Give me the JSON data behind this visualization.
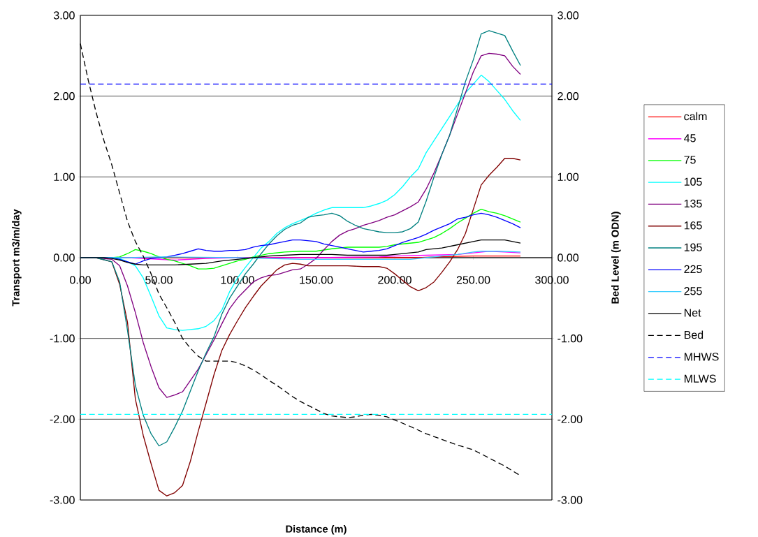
{
  "chart_data": {
    "type": "line",
    "xlabel": "Distance (m)",
    "ylabel": "Transport m3/m/day",
    "y2label": "Bed Level (m ODN)",
    "xlim": [
      0,
      300
    ],
    "ylim": [
      -3,
      3
    ],
    "y2lim": [
      -3,
      3
    ],
    "xticks": [
      {
        "value": 0,
        "label": "0.00"
      },
      {
        "value": 50,
        "label": "50.00"
      },
      {
        "value": 100,
        "label": "100.00"
      },
      {
        "value": 150,
        "label": "150.00"
      },
      {
        "value": 200,
        "label": "200.00"
      },
      {
        "value": 250,
        "label": "250.00"
      },
      {
        "value": 300,
        "label": "300.00"
      }
    ],
    "yticks": [
      {
        "value": -3,
        "label": "-3.00"
      },
      {
        "value": -2,
        "label": "-2.00"
      },
      {
        "value": -1,
        "label": "-1.00"
      },
      {
        "value": 0,
        "label": "0.00"
      },
      {
        "value": 1,
        "label": "1.00"
      },
      {
        "value": 2,
        "label": "2.00"
      },
      {
        "value": 3,
        "label": "3.00"
      }
    ],
    "y2ticks": [
      {
        "value": -3,
        "label": "-3.00"
      },
      {
        "value": -2,
        "label": "-2.00"
      },
      {
        "value": -1,
        "label": "-1.00"
      },
      {
        "value": 0,
        "label": "0.00"
      },
      {
        "value": 1,
        "label": "1.00"
      },
      {
        "value": 2,
        "label": "2.00"
      },
      {
        "value": 3,
        "label": "3.00"
      }
    ],
    "grid": "y",
    "legend": "right",
    "series": [
      {
        "name": "calm",
        "color": "#ff0000",
        "x": [
          0,
          200,
          215,
          225,
          250,
          280
        ],
        "values": [
          0,
          0,
          0,
          0.01,
          0.02,
          0.02
        ]
      },
      {
        "name": "45",
        "color": "#ff00ff",
        "x": [
          0,
          30,
          40,
          50,
          60,
          70,
          80,
          100,
          150,
          190,
          200,
          220,
          240,
          250,
          260,
          270,
          280
        ],
        "values": [
          0,
          0,
          -0.01,
          -0.02,
          -0.03,
          -0.02,
          -0.01,
          0,
          0,
          0.01,
          0.02,
          0.03,
          0.04,
          0.06,
          0.08,
          0.07,
          0.06
        ]
      },
      {
        "name": "75",
        "color": "#00ff00",
        "x": [
          0,
          20,
          25,
          30,
          35,
          40,
          45,
          50,
          55,
          60,
          65,
          70,
          75,
          80,
          85,
          90,
          95,
          100,
          105,
          110,
          115,
          120,
          130,
          140,
          150,
          160,
          170,
          180,
          190,
          195,
          200,
          205,
          210,
          215,
          220,
          225,
          230,
          235,
          240,
          245,
          250,
          255,
          260,
          265,
          270,
          275,
          280
        ],
        "values": [
          0,
          0,
          0.01,
          0.05,
          0.1,
          0.08,
          0.05,
          0.01,
          -0.02,
          -0.04,
          -0.07,
          -0.1,
          -0.14,
          -0.14,
          -0.13,
          -0.1,
          -0.07,
          -0.04,
          -0.02,
          0.01,
          0.03,
          0.05,
          0.07,
          0.08,
          0.08,
          0.11,
          0.13,
          0.13,
          0.13,
          0.14,
          0.16,
          0.17,
          0.18,
          0.19,
          0.22,
          0.25,
          0.3,
          0.36,
          0.43,
          0.49,
          0.55,
          0.6,
          0.57,
          0.55,
          0.52,
          0.48,
          0.44
        ]
      },
      {
        "name": "105",
        "color": "#00ffff",
        "x": [
          0,
          10,
          20,
          25,
          30,
          35,
          40,
          45,
          50,
          55,
          60,
          65,
          70,
          75,
          80,
          85,
          90,
          95,
          100,
          105,
          110,
          115,
          120,
          125,
          130,
          135,
          140,
          145,
          150,
          155,
          160,
          170,
          180,
          185,
          190,
          195,
          200,
          205,
          210,
          215,
          220,
          225,
          230,
          235,
          240,
          245,
          250,
          255,
          260,
          265,
          270,
          275,
          280
        ],
        "values": [
          0,
          0,
          0,
          -0.01,
          -0.05,
          -0.1,
          -0.25,
          -0.48,
          -0.72,
          -0.87,
          -0.89,
          -0.9,
          -0.89,
          -0.88,
          -0.85,
          -0.78,
          -0.65,
          -0.42,
          -0.25,
          -0.12,
          0,
          0.12,
          0.2,
          0.3,
          0.37,
          0.42,
          0.46,
          0.5,
          0.55,
          0.59,
          0.62,
          0.62,
          0.62,
          0.64,
          0.67,
          0.71,
          0.78,
          0.88,
          1.0,
          1.1,
          1.3,
          1.45,
          1.6,
          1.75,
          1.9,
          2.04,
          2.15,
          2.26,
          2.18,
          2.07,
          1.96,
          1.82,
          1.7
        ]
      },
      {
        "name": "135",
        "color": "#800080",
        "x": [
          0,
          10,
          20,
          25,
          30,
          35,
          40,
          45,
          50,
          55,
          60,
          65,
          70,
          75,
          80,
          85,
          90,
          95,
          100,
          105,
          110,
          115,
          120,
          125,
          130,
          135,
          140,
          145,
          150,
          155,
          160,
          165,
          170,
          175,
          180,
          185,
          190,
          195,
          200,
          205,
          210,
          215,
          220,
          225,
          230,
          235,
          240,
          245,
          250,
          255,
          260,
          265,
          270,
          275,
          280
        ],
        "values": [
          0,
          0,
          -0.02,
          -0.1,
          -0.35,
          -0.68,
          -1.05,
          -1.35,
          -1.61,
          -1.73,
          -1.7,
          -1.66,
          -1.52,
          -1.38,
          -1.2,
          -1.02,
          -0.82,
          -0.63,
          -0.5,
          -0.4,
          -0.3,
          -0.25,
          -0.22,
          -0.21,
          -0.18,
          -0.15,
          -0.14,
          -0.08,
          -0.01,
          0.1,
          0.2,
          0.28,
          0.33,
          0.36,
          0.4,
          0.43,
          0.46,
          0.5,
          0.53,
          0.58,
          0.63,
          0.69,
          0.85,
          1.05,
          1.28,
          1.52,
          1.78,
          2.04,
          2.3,
          2.5,
          2.53,
          2.52,
          2.5,
          2.37,
          2.27
        ]
      },
      {
        "name": "165",
        "color": "#800000",
        "x": [
          0,
          10,
          20,
          25,
          30,
          35,
          40,
          45,
          50,
          55,
          60,
          65,
          70,
          75,
          80,
          85,
          90,
          95,
          100,
          105,
          110,
          115,
          120,
          125,
          130,
          135,
          140,
          145,
          150,
          160,
          170,
          180,
          190,
          195,
          200,
          205,
          210,
          215,
          220,
          225,
          230,
          235,
          240,
          245,
          250,
          255,
          260,
          265,
          270,
          275,
          280
        ],
        "values": [
          0,
          0,
          -0.05,
          -0.33,
          -0.8,
          -1.75,
          -2.2,
          -2.55,
          -2.88,
          -2.95,
          -2.91,
          -2.82,
          -2.52,
          -2.15,
          -1.8,
          -1.45,
          -1.15,
          -0.95,
          -0.78,
          -0.62,
          -0.48,
          -0.35,
          -0.25,
          -0.15,
          -0.09,
          -0.07,
          -0.08,
          -0.1,
          -0.1,
          -0.1,
          -0.1,
          -0.11,
          -0.11,
          -0.13,
          -0.2,
          -0.28,
          -0.36,
          -0.41,
          -0.37,
          -0.3,
          -0.18,
          -0.05,
          0.1,
          0.3,
          0.6,
          0.9,
          1.02,
          1.12,
          1.23,
          1.23,
          1.21
        ]
      },
      {
        "name": "195",
        "color": "#008080",
        "x": [
          0,
          10,
          20,
          25,
          30,
          35,
          40,
          45,
          50,
          55,
          60,
          65,
          70,
          75,
          80,
          85,
          90,
          95,
          100,
          105,
          110,
          115,
          120,
          125,
          130,
          135,
          140,
          145,
          150,
          155,
          160,
          165,
          170,
          175,
          180,
          185,
          190,
          195,
          200,
          205,
          210,
          215,
          220,
          225,
          230,
          235,
          240,
          245,
          250,
          255,
          260,
          265,
          270,
          275,
          280
        ],
        "values": [
          0,
          0,
          -0.05,
          -0.3,
          -0.9,
          -1.58,
          -1.95,
          -2.18,
          -2.33,
          -2.28,
          -2.1,
          -1.9,
          -1.65,
          -1.4,
          -1.18,
          -0.98,
          -0.7,
          -0.5,
          -0.35,
          -0.2,
          -0.08,
          0.05,
          0.17,
          0.27,
          0.35,
          0.4,
          0.43,
          0.5,
          0.52,
          0.53,
          0.55,
          0.52,
          0.45,
          0.4,
          0.36,
          0.34,
          0.32,
          0.31,
          0.31,
          0.32,
          0.36,
          0.44,
          0.7,
          1.0,
          1.28,
          1.52,
          1.85,
          2.18,
          2.45,
          2.77,
          2.81,
          2.78,
          2.75,
          2.56,
          2.38
        ]
      },
      {
        "name": "225",
        "color": "#0000ff",
        "x": [
          0,
          20,
          25,
          30,
          35,
          40,
          45,
          50,
          55,
          60,
          65,
          70,
          75,
          80,
          85,
          90,
          95,
          100,
          105,
          110,
          115,
          120,
          125,
          130,
          135,
          140,
          145,
          150,
          155,
          160,
          165,
          170,
          175,
          180,
          185,
          190,
          195,
          200,
          205,
          210,
          215,
          220,
          225,
          230,
          235,
          240,
          245,
          250,
          255,
          260,
          265,
          270,
          275,
          280
        ],
        "values": [
          0,
          0,
          -0.02,
          -0.05,
          -0.08,
          -0.04,
          -0.01,
          0,
          0.01,
          0.03,
          0.05,
          0.08,
          0.11,
          0.09,
          0.08,
          0.08,
          0.09,
          0.09,
          0.1,
          0.13,
          0.15,
          0.16,
          0.18,
          0.2,
          0.22,
          0.22,
          0.21,
          0.2,
          0.17,
          0.15,
          0.13,
          0.11,
          0.09,
          0.07,
          0.08,
          0.09,
          0.11,
          0.15,
          0.19,
          0.22,
          0.25,
          0.29,
          0.34,
          0.38,
          0.42,
          0.48,
          0.5,
          0.53,
          0.55,
          0.53,
          0.5,
          0.46,
          0.42,
          0.37
        ]
      },
      {
        "name": "255",
        "color": "#33ccff",
        "x": [
          0,
          30,
          50,
          100,
          120,
          140,
          160,
          180,
          200,
          210,
          220,
          230,
          240,
          250,
          255,
          265,
          280
        ],
        "values": [
          0,
          0,
          0.01,
          0,
          -0.01,
          -0.02,
          -0.02,
          -0.02,
          -0.02,
          -0.02,
          0,
          0.02,
          0.04,
          0.07,
          0.08,
          0.08,
          0.07
        ]
      },
      {
        "name": "Net",
        "color": "#000000",
        "x": [
          0,
          15,
          20,
          25,
          30,
          35,
          40,
          50,
          60,
          70,
          80,
          90,
          100,
          110,
          120,
          130,
          140,
          150,
          160,
          170,
          180,
          190,
          195,
          200,
          205,
          210,
          215,
          220,
          230,
          240,
          250,
          255,
          260,
          265,
          270,
          275,
          280
        ],
        "values": [
          0,
          0,
          -0.01,
          -0.03,
          -0.06,
          -0.08,
          -0.09,
          -0.09,
          -0.09,
          -0.08,
          -0.07,
          -0.04,
          -0.02,
          0,
          0.02,
          0.03,
          0.04,
          0.04,
          0.04,
          0.03,
          0.03,
          0.03,
          0.03,
          0.04,
          0.05,
          0.06,
          0.07,
          0.1,
          0.12,
          0.16,
          0.2,
          0.22,
          0.22,
          0.22,
          0.22,
          0.2,
          0.18
        ]
      },
      {
        "name": "Bed",
        "color": "#000000",
        "axis": "y2",
        "line_style": "dashed",
        "x": [
          0,
          5,
          10,
          15,
          20,
          25,
          30,
          35,
          40,
          45,
          50,
          55,
          60,
          65,
          70,
          75,
          80,
          85,
          90,
          95,
          100,
          105,
          110,
          115,
          120,
          125,
          130,
          135,
          140,
          145,
          150,
          155,
          160,
          165,
          170,
          175,
          180,
          185,
          190,
          195,
          200,
          210,
          220,
          230,
          240,
          250,
          260,
          270,
          280
        ],
        "values": [
          2.65,
          2.2,
          1.8,
          1.45,
          1.15,
          0.8,
          0.45,
          0.2,
          0.02,
          -0.2,
          -0.45,
          -0.62,
          -0.8,
          -1.0,
          -1.12,
          -1.22,
          -1.28,
          -1.28,
          -1.28,
          -1.28,
          -1.3,
          -1.34,
          -1.39,
          -1.45,
          -1.52,
          -1.58,
          -1.65,
          -1.72,
          -1.78,
          -1.83,
          -1.88,
          -1.93,
          -1.96,
          -1.97,
          -1.98,
          -1.97,
          -1.95,
          -1.94,
          -1.95,
          -1.97,
          -2.01,
          -2.09,
          -2.18,
          -2.25,
          -2.32,
          -2.38,
          -2.48,
          -2.58,
          -2.7
        ]
      }
    ],
    "ref_lines": [
      {
        "axis": "y2",
        "value": 2.15,
        "label": "MHWS",
        "color": "#0000ff",
        "line_style": "dashed"
      },
      {
        "axis": "y2",
        "value": -1.94,
        "label": "MLWS",
        "color": "#00ffff",
        "line_style": "dashed"
      }
    ]
  }
}
